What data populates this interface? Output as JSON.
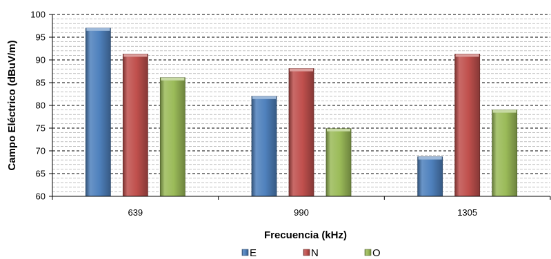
{
  "chart_data": {
    "type": "bar",
    "categories": [
      "639",
      "990",
      "1305"
    ],
    "series": [
      {
        "name": "E",
        "values": [
          97,
          82,
          68.7
        ],
        "color": "#4f81bd"
      },
      {
        "name": "N",
        "values": [
          91.3,
          88.1,
          91.3
        ],
        "color": "#c0504d"
      },
      {
        "name": "O",
        "values": [
          86.1,
          74.9,
          79
        ],
        "color": "#9bbb59"
      }
    ],
    "xlabel": "Frecuencia (kHz)",
    "ylabel": "Campo Eléctrico (dBuV/m)",
    "ylim": [
      60,
      100
    ],
    "yticks": [
      "60",
      "65",
      "70",
      "75",
      "80",
      "85",
      "90",
      "95",
      "100"
    ],
    "major_step": 5,
    "minor_step": 1,
    "grid": true,
    "legend_position": "bottom"
  }
}
